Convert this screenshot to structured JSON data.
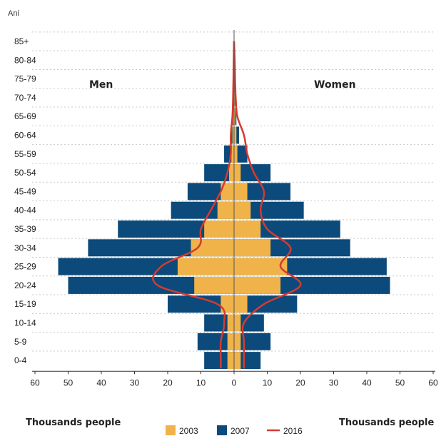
{
  "chart_data": {
    "type": "bar",
    "subtype": "population-pyramid",
    "y_unit_label": "Ani",
    "left_title": "Men",
    "right_title": "Women",
    "xlabel_left": "Thousands people",
    "xlabel_right": "Thousands people",
    "x_ticks": [
      "60",
      "50",
      "40",
      "30",
      "20",
      "10",
      "0",
      "10",
      "20",
      "30",
      "40",
      "50",
      "60"
    ],
    "xlim": [
      -60,
      60
    ],
    "grid": "horizontal dotted",
    "categories": [
      "0-4",
      "5-9",
      "10-14",
      "15-19",
      "20-24",
      "25-29",
      "30-34",
      "35-39",
      "40-44",
      "45-49",
      "50-54",
      "55-59",
      "60-64",
      "65-69",
      "70-74",
      "75-79",
      "80-84",
      "85+"
    ],
    "series": [
      {
        "name": "2003",
        "kind": "bar",
        "color": "#F0B34A",
        "men": [
          2,
          2,
          2,
          4,
          12,
          17,
          13,
          9,
          5,
          4,
          1.5,
          0.8,
          0.5,
          0.3,
          0.2,
          0.1,
          0.1,
          0
        ],
        "women": [
          2,
          2,
          2,
          4,
          14,
          16,
          11,
          8,
          5,
          4,
          2,
          1,
          0.7,
          0.4,
          0.2,
          0.1,
          0.1,
          0
        ]
      },
      {
        "name": "2007",
        "kind": "bar",
        "color": "#0B4A7A",
        "men": [
          9,
          11,
          9,
          20,
          50,
          53,
          44,
          35,
          19,
          14,
          9,
          3,
          1,
          0.5,
          0.3,
          0.2,
          0.1,
          0
        ],
        "women": [
          8,
          11,
          9,
          19,
          47,
          46,
          35,
          32,
          21,
          17,
          11,
          4,
          1.5,
          0.7,
          0.3,
          0.2,
          0.1,
          0
        ]
      },
      {
        "name": "2016",
        "kind": "line",
        "color": "#D63A31",
        "men": [
          4,
          4,
          3,
          5,
          23,
          22,
          11,
          10,
          7,
          4,
          2,
          1,
          1,
          0.5,
          0.3,
          0.2,
          0.1,
          0
        ],
        "women": [
          3,
          3,
          3,
          9,
          20,
          14,
          17,
          10,
          8,
          9,
          6,
          4,
          3,
          1,
          0.5,
          0.3,
          0.2,
          0
        ]
      }
    ],
    "legend": [
      "2003",
      "2007",
      "2016"
    ],
    "legend_position": "bottom-center"
  }
}
